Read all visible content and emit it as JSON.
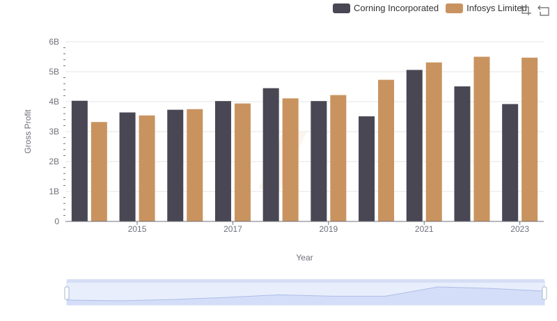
{
  "legend": {
    "items": [
      {
        "label": "Corning Incorporated",
        "color": "#484753"
      },
      {
        "label": "Infosys Limited",
        "color": "#c9935f"
      }
    ]
  },
  "toolbox": {
    "icons": [
      "data-zoom-icon",
      "restore-icon"
    ]
  },
  "chart_data": {
    "type": "bar",
    "x": [
      2014,
      2015,
      2016,
      2017,
      2018,
      2019,
      2020,
      2021,
      2022,
      2023
    ],
    "x_tick_labels": [
      "2015",
      "2017",
      "2019",
      "2021",
      "2023"
    ],
    "xlabel": "Year",
    "ylabel": "Gross Profit",
    "ylim": [
      0,
      6000000000
    ],
    "y_tick_labels": [
      "0",
      "1B",
      "2B",
      "3B",
      "4B",
      "5B",
      "6B"
    ],
    "grid": true,
    "legend_position": "top-right",
    "series": [
      {
        "name": "Corning Incorporated",
        "color": "#484753",
        "values": [
          4030000000,
          3640000000,
          3730000000,
          4020000000,
          4450000000,
          4020000000,
          3510000000,
          5060000000,
          4510000000,
          3920000000
        ]
      },
      {
        "name": "Infosys Limited",
        "color": "#c9935f",
        "values": [
          3320000000,
          3540000000,
          3750000000,
          3940000000,
          4110000000,
          4220000000,
          4730000000,
          5310000000,
          5500000000,
          5470000000
        ]
      }
    ],
    "slider_range": [
      0,
      100
    ]
  }
}
